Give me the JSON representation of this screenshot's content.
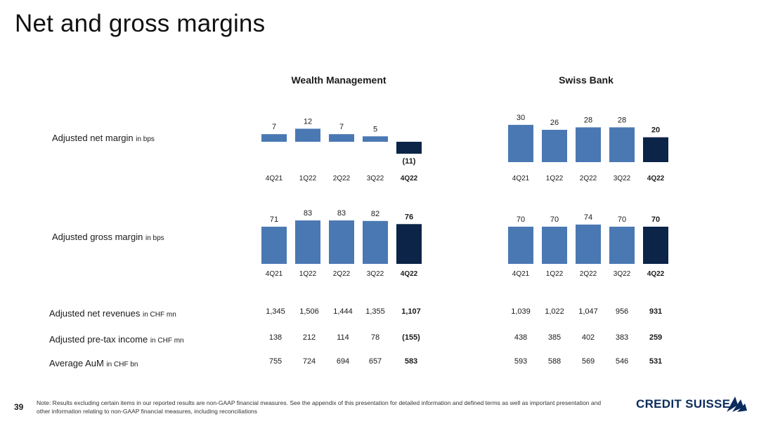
{
  "title": "Net and gross margins",
  "page_number": "39",
  "footnote": "Note: Results excluding certain items in our reported results are non-GAAP financial measures. See the appendix of this presentation for detailed information and defined terms as well as important presentation and other information relating to non-GAAP financial measures, including reconciliations",
  "brand": {
    "name": "CREDIT SUISSE",
    "color": "#0b2b5c"
  },
  "colors": {
    "bar": "#4a78b3",
    "bar_highlight": "#0b2447",
    "text": "#1a1a1a"
  },
  "row_labels": {
    "net_margin": {
      "text": "Adjusted net margin",
      "unit": "in bps"
    },
    "gross_margin": {
      "text": "Adjusted gross margin",
      "unit": "in bps"
    },
    "net_revenues": {
      "text": "Adjusted net revenues",
      "unit": "in CHF mn"
    },
    "pretax_income": {
      "text": "Adjusted pre-tax income",
      "unit": "in CHF mn"
    },
    "aum": {
      "text": "Average AuM",
      "unit": "in CHF bn"
    }
  },
  "chart_data": [
    {
      "type": "bar",
      "panel": "Wealth Management",
      "metric": "Adjusted net margin in bps",
      "categories": [
        "4Q21",
        "1Q22",
        "2Q22",
        "3Q22",
        "4Q22"
      ],
      "values": [
        7,
        12,
        7,
        5,
        -11
      ],
      "value_labels": [
        "7",
        "12",
        "7",
        "5",
        "(11)"
      ],
      "highlight_index": 4
    },
    {
      "type": "bar",
      "panel": "Swiss Bank",
      "metric": "Adjusted net margin in bps",
      "categories": [
        "4Q21",
        "1Q22",
        "2Q22",
        "3Q22",
        "4Q22"
      ],
      "values": [
        30,
        26,
        28,
        28,
        20
      ],
      "value_labels": [
        "30",
        "26",
        "28",
        "28",
        "20"
      ],
      "highlight_index": 4
    },
    {
      "type": "bar",
      "panel": "Wealth Management",
      "metric": "Adjusted gross margin in bps",
      "categories": [
        "4Q21",
        "1Q22",
        "2Q22",
        "3Q22",
        "4Q22"
      ],
      "values": [
        71,
        83,
        83,
        82,
        76
      ],
      "value_labels": [
        "71",
        "83",
        "83",
        "82",
        "76"
      ],
      "highlight_index": 4
    },
    {
      "type": "bar",
      "panel": "Swiss Bank",
      "metric": "Adjusted gross margin in bps",
      "categories": [
        "4Q21",
        "1Q22",
        "2Q22",
        "3Q22",
        "4Q22"
      ],
      "values": [
        70,
        70,
        74,
        70,
        70
      ],
      "value_labels": [
        "70",
        "70",
        "74",
        "70",
        "70"
      ],
      "highlight_index": 4
    },
    {
      "type": "table",
      "panels": [
        "Wealth Management",
        "Swiss Bank"
      ],
      "columns": [
        "4Q21",
        "1Q22",
        "2Q22",
        "3Q22",
        "4Q22"
      ],
      "highlight_index": 4,
      "rows": [
        {
          "key": "net_revenues",
          "wealth_management": [
            "1,345",
            "1,506",
            "1,444",
            "1,355",
            "1,107"
          ],
          "swiss_bank": [
            "1,039",
            "1,022",
            "1,047",
            "956",
            "931"
          ]
        },
        {
          "key": "pretax_income",
          "wealth_management": [
            "138",
            "212",
            "114",
            "78",
            "(155)"
          ],
          "swiss_bank": [
            "438",
            "385",
            "402",
            "383",
            "259"
          ]
        },
        {
          "key": "aum",
          "wealth_management": [
            "755",
            "724",
            "694",
            "657",
            "583"
          ],
          "swiss_bank": [
            "593",
            "588",
            "569",
            "546",
            "531"
          ]
        }
      ]
    }
  ]
}
